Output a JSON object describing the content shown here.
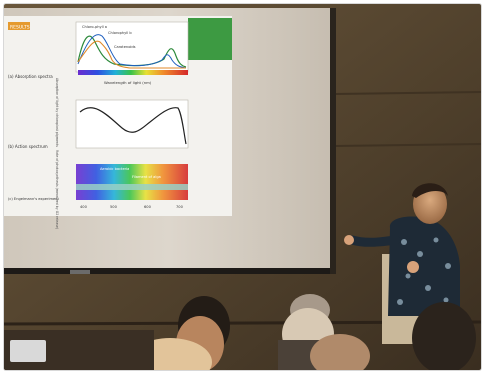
{
  "photo": {
    "description_free": true
  },
  "slide": {
    "header_tag": "RESULTS",
    "chart_a": {
      "label": "(a) Absorption spectra",
      "ylabel": "Absorption of light by chloroplast pigments",
      "xlabel": "Wavelength of light (nm)",
      "series_labels": [
        "Chloro-phyll a",
        "Chlorophyll b",
        "Carotenoids"
      ]
    },
    "chart_b": {
      "label": "(b) Action spectrum",
      "ylabel": "Rate of photosynthesis (measured by O2 release)"
    },
    "chart_c": {
      "label": "(c) Engelmann's experiment",
      "annot_1": "Aerobic bacteria",
      "annot_2": "Filament of alga",
      "ticks": [
        "400",
        "500",
        "600",
        "700"
      ]
    }
  },
  "colors": {
    "wall": "#5b4a33",
    "screen": "#d9d2c7",
    "slide_bg": "#f3f2ee",
    "slide_green": "#3d9a42",
    "presenter_shirt": "#1e2a36",
    "audience_dark": "#2b231c"
  }
}
